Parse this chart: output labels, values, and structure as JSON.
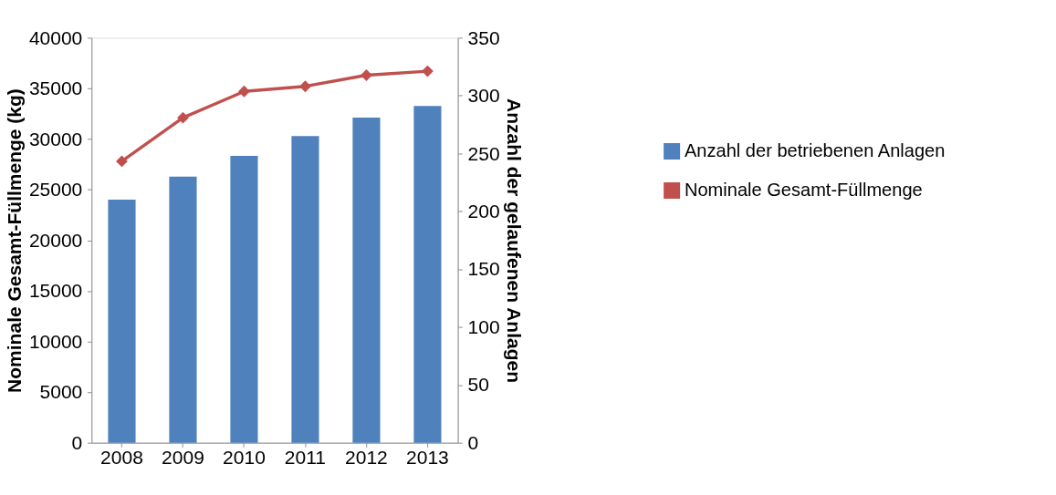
{
  "chart_data": {
    "type": "bar",
    "categories": [
      "2008",
      "2009",
      "2010",
      "2011",
      "2012",
      "2013"
    ],
    "ylabel": "Nominale Gesamt-Füllmenge (kg)",
    "y2label": "Anzahl der gelaufenen Anlagen",
    "ylim": [
      0,
      40000
    ],
    "yticks": [
      0,
      5000,
      10000,
      15000,
      20000,
      25000,
      30000,
      35000,
      40000
    ],
    "y2lim": [
      0,
      350
    ],
    "y2ticks": [
      0,
      50,
      100,
      150,
      200,
      250,
      300,
      350
    ],
    "grid": false,
    "legend": "right",
    "series": [
      {
        "name": "Anzahl der betriebenen Anlagen",
        "axis": "y2",
        "color": "#4f81bd",
        "values": [
          210,
          230,
          248,
          265,
          281,
          291
        ]
      },
      {
        "name": "Nominale Gesamt-Füllmenge",
        "type": "line",
        "axis": "y",
        "color": "#c0504d",
        "marker": "diamond",
        "values": [
          27800,
          32100,
          34700,
          35200,
          36300,
          36700
        ]
      }
    ]
  }
}
